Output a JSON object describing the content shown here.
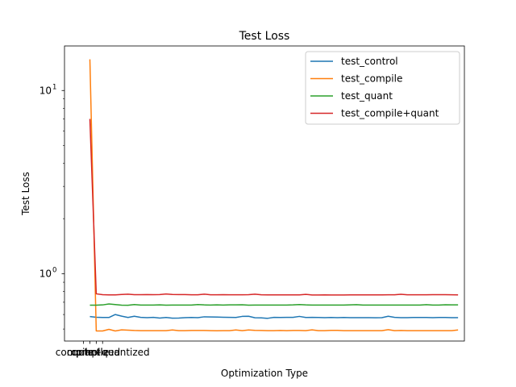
{
  "chart_data": {
    "type": "line",
    "title": "Test Loss",
    "xlabel": "Optimization Type",
    "ylabel": "Test Loss",
    "yscale": "log",
    "ylim": [
      0.43,
      17.5
    ],
    "xlim": [
      -3.0,
      60.0
    ],
    "grid": false,
    "legend_position": "top-right",
    "x_ticks": [
      {
        "value": 0,
        "label": "control"
      },
      {
        "value": 1,
        "label": "compile"
      },
      {
        "value": 2,
        "label": "quantized"
      },
      {
        "value": 3,
        "label": "compile+quantized"
      }
    ],
    "y_ticks": [
      {
        "value": 1,
        "label": "10",
        "exp": "0"
      },
      {
        "value": 10,
        "label": "10",
        "exp": "1"
      }
    ],
    "x": [
      1,
      2,
      3,
      4,
      5,
      6,
      7,
      8,
      9,
      10,
      11,
      12,
      13,
      14,
      15,
      16,
      17,
      18,
      19,
      20,
      21,
      22,
      23,
      24,
      25,
      26,
      27,
      28,
      29,
      30,
      31,
      32,
      33,
      34,
      35,
      36,
      37,
      38,
      39,
      40,
      41,
      42,
      43,
      44,
      45,
      46,
      47,
      48,
      49,
      50,
      51,
      52,
      53,
      54,
      55,
      56,
      57,
      58,
      59
    ],
    "series": [
      {
        "name": "test_control",
        "color": "#1f77b4",
        "values": [
          0.585,
          0.58,
          0.578,
          0.578,
          0.6,
          0.588,
          0.578,
          0.587,
          0.579,
          0.577,
          0.579,
          0.574,
          0.578,
          0.573,
          0.574,
          0.577,
          0.578,
          0.577,
          0.583,
          0.582,
          0.581,
          0.58,
          0.579,
          0.578,
          0.586,
          0.587,
          0.576,
          0.575,
          0.572,
          0.579,
          0.578,
          0.579,
          0.579,
          0.586,
          0.578,
          0.579,
          0.578,
          0.577,
          0.578,
          0.577,
          0.578,
          0.577,
          0.577,
          0.577,
          0.577,
          0.576,
          0.577,
          0.587,
          0.579,
          0.577,
          0.577,
          0.578,
          0.578,
          0.578,
          0.577,
          0.578,
          0.578,
          0.577,
          0.577
        ]
      },
      {
        "name": "test_compile",
        "color": "#ff7f0e",
        "values": [
          14.8,
          0.488,
          0.488,
          0.498,
          0.488,
          0.495,
          0.493,
          0.491,
          0.49,
          0.49,
          0.49,
          0.49,
          0.49,
          0.494,
          0.49,
          0.49,
          0.491,
          0.491,
          0.491,
          0.49,
          0.489,
          0.49,
          0.49,
          0.494,
          0.49,
          0.494,
          0.492,
          0.491,
          0.49,
          0.49,
          0.491,
          0.49,
          0.491,
          0.491,
          0.49,
          0.495,
          0.49,
          0.49,
          0.492,
          0.492,
          0.49,
          0.49,
          0.49,
          0.49,
          0.49,
          0.49,
          0.49,
          0.496,
          0.49,
          0.491,
          0.49,
          0.49,
          0.49,
          0.49,
          0.49,
          0.49,
          0.49,
          0.49,
          0.494
        ]
      },
      {
        "name": "test_quant",
        "color": "#2ca02c",
        "values": [
          0.675,
          0.675,
          0.677,
          0.685,
          0.68,
          0.675,
          0.674,
          0.68,
          0.676,
          0.676,
          0.676,
          0.677,
          0.675,
          0.676,
          0.676,
          0.676,
          0.676,
          0.68,
          0.677,
          0.676,
          0.677,
          0.676,
          0.677,
          0.677,
          0.678,
          0.675,
          0.676,
          0.676,
          0.676,
          0.676,
          0.676,
          0.676,
          0.677,
          0.68,
          0.677,
          0.676,
          0.676,
          0.676,
          0.676,
          0.676,
          0.676,
          0.677,
          0.679,
          0.676,
          0.676,
          0.676,
          0.676,
          0.676,
          0.676,
          0.676,
          0.676,
          0.676,
          0.676,
          0.679,
          0.676,
          0.676,
          0.678,
          0.677,
          0.677
        ]
      },
      {
        "name": "test_compile+quant",
        "color": "#d62728",
        "values": [
          7.0,
          0.778,
          0.77,
          0.768,
          0.768,
          0.772,
          0.775,
          0.77,
          0.77,
          0.771,
          0.77,
          0.771,
          0.777,
          0.772,
          0.771,
          0.771,
          0.769,
          0.769,
          0.775,
          0.769,
          0.769,
          0.77,
          0.769,
          0.769,
          0.769,
          0.77,
          0.775,
          0.769,
          0.768,
          0.768,
          0.768,
          0.768,
          0.768,
          0.768,
          0.773,
          0.767,
          0.767,
          0.768,
          0.767,
          0.767,
          0.767,
          0.768,
          0.768,
          0.768,
          0.768,
          0.768,
          0.768,
          0.769,
          0.769,
          0.774,
          0.769,
          0.769,
          0.769,
          0.769,
          0.77,
          0.77,
          0.77,
          0.769,
          0.768
        ]
      }
    ]
  }
}
